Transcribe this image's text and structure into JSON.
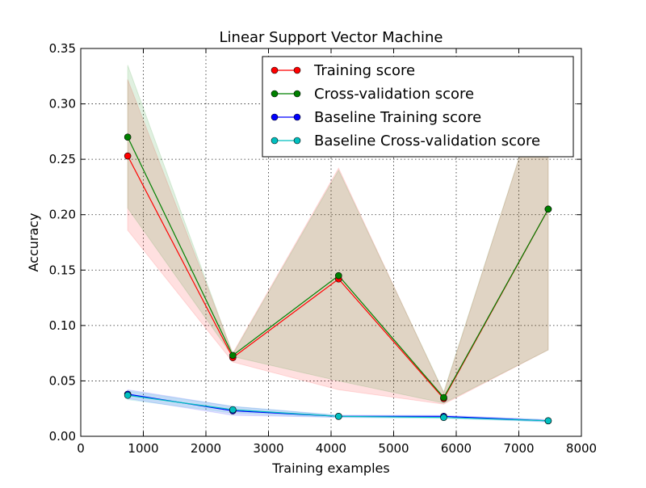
{
  "chart_data": {
    "type": "line",
    "title": "Linear Support Vector Machine",
    "xlabel": "Training examples",
    "ylabel": "Accuracy",
    "xlim": [
      0,
      8000
    ],
    "ylim": [
      0,
      0.35
    ],
    "xticks": [
      0,
      1000,
      2000,
      3000,
      4000,
      5000,
      6000,
      7000,
      8000
    ],
    "xtick_labels": [
      "0",
      "1000",
      "2000",
      "3000",
      "4000",
      "5000",
      "6000",
      "7000",
      "8000"
    ],
    "yticks": [
      0,
      0.05,
      0.1,
      0.15,
      0.2,
      0.25,
      0.3,
      0.35
    ],
    "ytick_labels": [
      "0.00",
      "0.05",
      "0.10",
      "0.15",
      "0.20",
      "0.25",
      "0.30",
      "0.35"
    ],
    "grid": true,
    "legend_position": "top-right",
    "x": [
      750,
      2430,
      4120,
      5800,
      7470
    ],
    "series": [
      {
        "name": "Training score",
        "color": "#ff0000",
        "values": [
          0.253,
          0.071,
          0.142,
          0.034,
          0.205
        ],
        "band_lower": [
          0.186,
          0.067,
          0.042,
          0.029,
          0.078
        ],
        "band_upper": [
          0.322,
          0.075,
          0.242,
          0.039,
          0.333
        ],
        "band_color": "#ff0000"
      },
      {
        "name": "Cross-validation score",
        "color": "#008000",
        "values": [
          0.27,
          0.073,
          0.145,
          0.035,
          0.205
        ],
        "band_lower": [
          0.206,
          0.072,
          0.05,
          0.03,
          0.078
        ],
        "band_upper": [
          0.335,
          0.074,
          0.24,
          0.04,
          0.333
        ],
        "band_color": "#008000"
      },
      {
        "name": "Baseline Training score",
        "color": "#0000ff",
        "values": [
          0.038,
          0.023,
          0.018,
          0.018,
          0.014
        ],
        "band_lower": [
          0.034,
          0.019,
          0.017,
          0.017,
          0.013
        ],
        "band_upper": [
          0.042,
          0.027,
          0.019,
          0.019,
          0.015
        ],
        "band_color": "#0000ff"
      },
      {
        "name": "Baseline Cross-validation score",
        "color": "#00bfbf",
        "values": [
          0.037,
          0.024,
          0.018,
          0.017,
          0.014
        ],
        "band_lower": [
          0.033,
          0.021,
          0.017,
          0.016,
          0.013
        ],
        "band_upper": [
          0.041,
          0.027,
          0.019,
          0.018,
          0.015
        ],
        "band_color": "#00bfbf"
      }
    ]
  }
}
